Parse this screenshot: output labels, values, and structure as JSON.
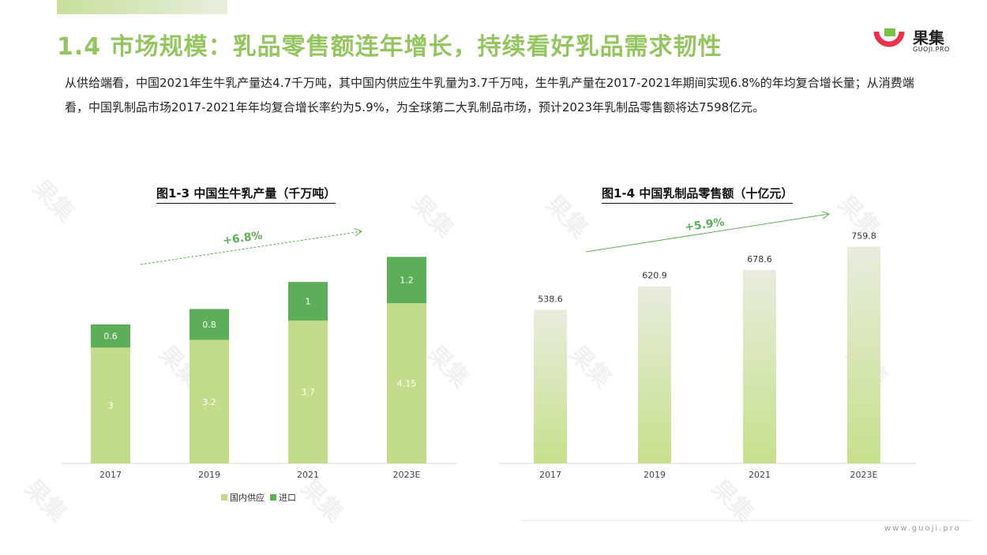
{
  "header": {
    "title": "1.4 市场规模：乳品零售额连年增长，持续看好乳品需求韧性",
    "logo_cn": "果集",
    "logo_en": "GUOJI.PRO"
  },
  "intro_text": "从供给端看，中国2021年生牛乳产量达4.7千万吨，其中国内供应生牛乳量为3.7千万吨，生牛乳产量在2017-2021年期间实现6.8%的年均复合增长量；从消费端看，中国乳制品市场2017-2021年年均复合增长率约为5.9%，为全球第二大乳制品市场，预计2023年乳制品零售额将达7598亿元。",
  "footer": {
    "url": "www.guoji.pro"
  },
  "colors": {
    "domestic": "#c3dc8c",
    "import": "#5cae58",
    "arrow": "#5cae58",
    "bar2_top": "#e8ecdd",
    "bar2_bottom": "#c6e08c"
  },
  "chart_data": [
    {
      "type": "bar",
      "stacked": true,
      "title": "图1-3 中国生牛乳产量（千万吨）",
      "categories": [
        "2017",
        "2019",
        "2021",
        "2023E"
      ],
      "series": [
        {
          "name": "国内供应",
          "values": [
            3,
            3.2,
            3.7,
            4.15
          ],
          "labels": [
            "3",
            "3.2",
            "3.7",
            "4.15"
          ]
        },
        {
          "name": "进口",
          "values": [
            0.6,
            0.8,
            1,
            1.2
          ],
          "labels": [
            "0.6",
            "0.8",
            "1",
            "1.2"
          ]
        }
      ],
      "annotation": "+6.8%",
      "legend_position": "bottom"
    },
    {
      "type": "bar",
      "title": "图1-4 中国乳制品零售额（十亿元）",
      "categories": [
        "2017",
        "2019",
        "2021",
        "2023E"
      ],
      "values": [
        538.6,
        620.9,
        678.6,
        759.8
      ],
      "labels": [
        "538.6",
        "620.9",
        "678.6",
        "759.8"
      ],
      "annotation": "+5.9%"
    }
  ]
}
